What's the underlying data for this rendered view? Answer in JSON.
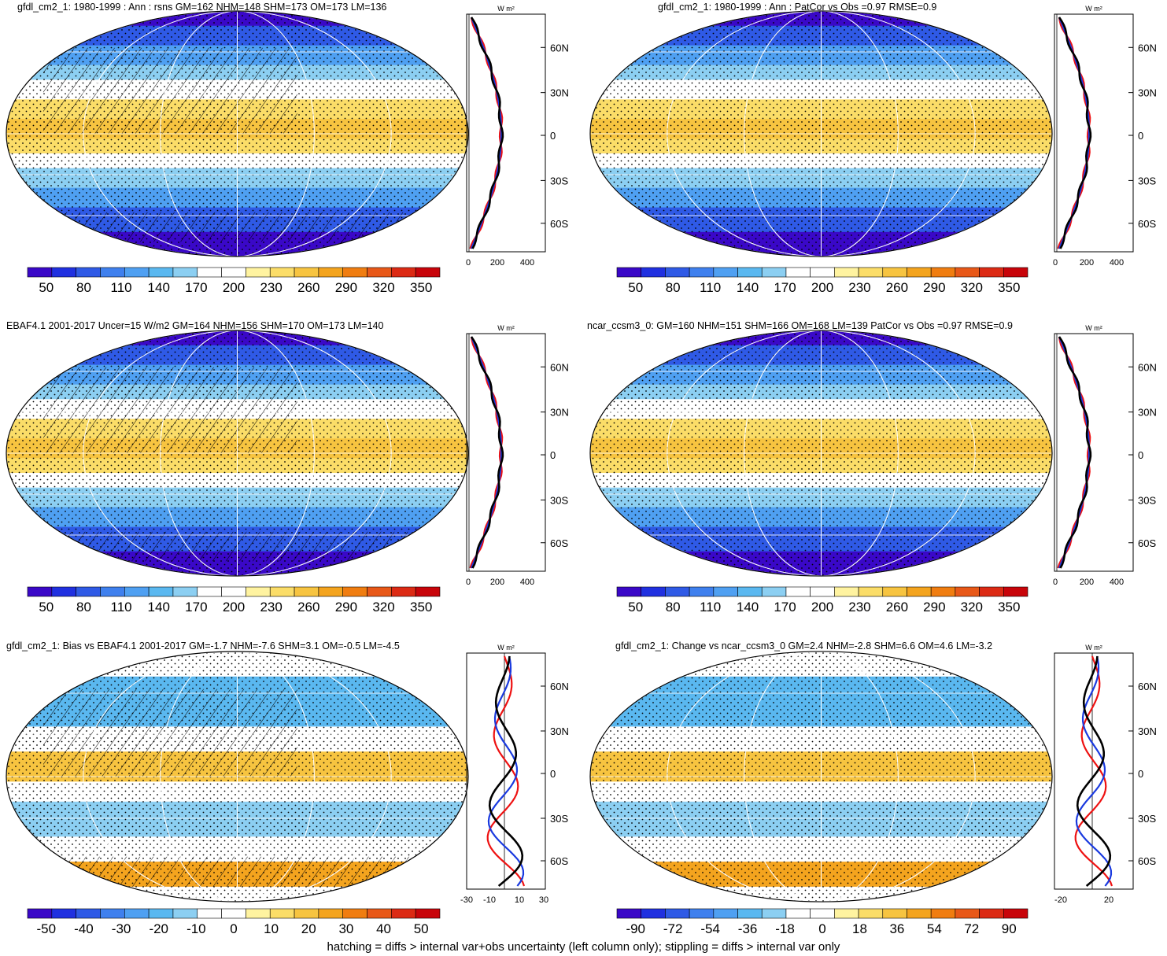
{
  "footer": "hatching = diffs > internal var+obs uncertainty (left column only); stippling = diffs > internal var only",
  "zonal_units": "W m²",
  "lat_ticks": [
    "60N",
    "30N",
    "0",
    "30S",
    "60S"
  ],
  "colors": {
    "abs_scale": [
      "#3a08c8",
      "#2030e0",
      "#2f5ae6",
      "#3f80ee",
      "#4fa0f2",
      "#5ab8f0",
      "#8ccff2",
      "#ffffff",
      "#ffffff",
      "#fff3a0",
      "#fbdd68",
      "#f7c440",
      "#f4a41e",
      "#f07d10",
      "#e85818",
      "#dc2a14",
      "#c8040a"
    ],
    "bias_scale": [
      "#3a08c8",
      "#2030e0",
      "#2f5ae6",
      "#3f80ee",
      "#4fa0f2",
      "#5ab8f0",
      "#8ccff2",
      "#ffffff",
      "#ffffff",
      "#fff3a0",
      "#fbdd68",
      "#f7c440",
      "#f4a41e",
      "#f07d10",
      "#e85818",
      "#dc2a14",
      "#c8040a"
    ],
    "line_red": "#ee1111",
    "line_blue": "#1a3adf",
    "line_black": "#000000"
  },
  "panels": [
    {
      "title": "gfdl_cm2_1: 1980-1999 : Ann : rsns GM=162 NHM=148 SHM=173 OM=173 LM=136",
      "kind": "abs",
      "hatch": true,
      "cbar_labels": [
        "50",
        "80",
        "110",
        "140",
        "170",
        "200",
        "230",
        "260",
        "290",
        "320",
        "350"
      ],
      "zonal_ticks": [
        "0",
        "200",
        "400"
      ]
    },
    {
      "title": "gfdl_cm2_1: 1980-1999 : Ann : PatCor vs Obs =0.97 RMSE=0.9",
      "kind": "abs",
      "hatch": false,
      "cbar_labels": [
        "50",
        "80",
        "110",
        "140",
        "170",
        "200",
        "230",
        "260",
        "290",
        "320",
        "350"
      ],
      "zonal_ticks": [
        "0",
        "200",
        "400"
      ]
    },
    {
      "title": "EBAF4.1 2001-2017 Uncer=15 W/m2 GM=164 NHM=156 SHM=170 OM=173 LM=140",
      "kind": "abs",
      "hatch": true,
      "cbar_labels": [
        "50",
        "80",
        "110",
        "140",
        "170",
        "200",
        "230",
        "260",
        "290",
        "320",
        "350"
      ],
      "zonal_ticks": [
        "0",
        "200",
        "400"
      ]
    },
    {
      "title": "ncar_ccsm3_0: GM=160 NHM=151 SHM=166 OM=168 LM=139 PatCor vs Obs =0.97 RMSE=0.9",
      "kind": "abs",
      "hatch": false,
      "cbar_labels": [
        "50",
        "80",
        "110",
        "140",
        "170",
        "200",
        "230",
        "260",
        "290",
        "320",
        "350"
      ],
      "zonal_ticks": [
        "0",
        "200",
        "400"
      ]
    },
    {
      "title": "gfdl_cm2_1: Bias vs EBAF4.1 2001-2017 GM=-1.7 NHM=-7.6 SHM=3.1 OM=-0.5 LM=-4.5",
      "kind": "bias",
      "hatch": true,
      "cbar_labels": [
        "-50",
        "-40",
        "-30",
        "-20",
        "-10",
        "0",
        "10",
        "20",
        "30",
        "40",
        "50"
      ],
      "zonal_ticks": [
        "-30",
        "-10",
        "10",
        "30"
      ]
    },
    {
      "title": "gfdl_cm2_1: Change vs ncar_ccsm3_0 GM=2.4 NHM=-2.8 SHM=6.6 OM=4.6 LM=-3.2",
      "kind": "bias",
      "hatch": false,
      "cbar_labels": [
        "-90",
        "-72",
        "-54",
        "-36",
        "-18",
        "0",
        "18",
        "36",
        "54",
        "72",
        "90"
      ],
      "zonal_ticks": [
        "-20",
        "20"
      ]
    }
  ]
}
